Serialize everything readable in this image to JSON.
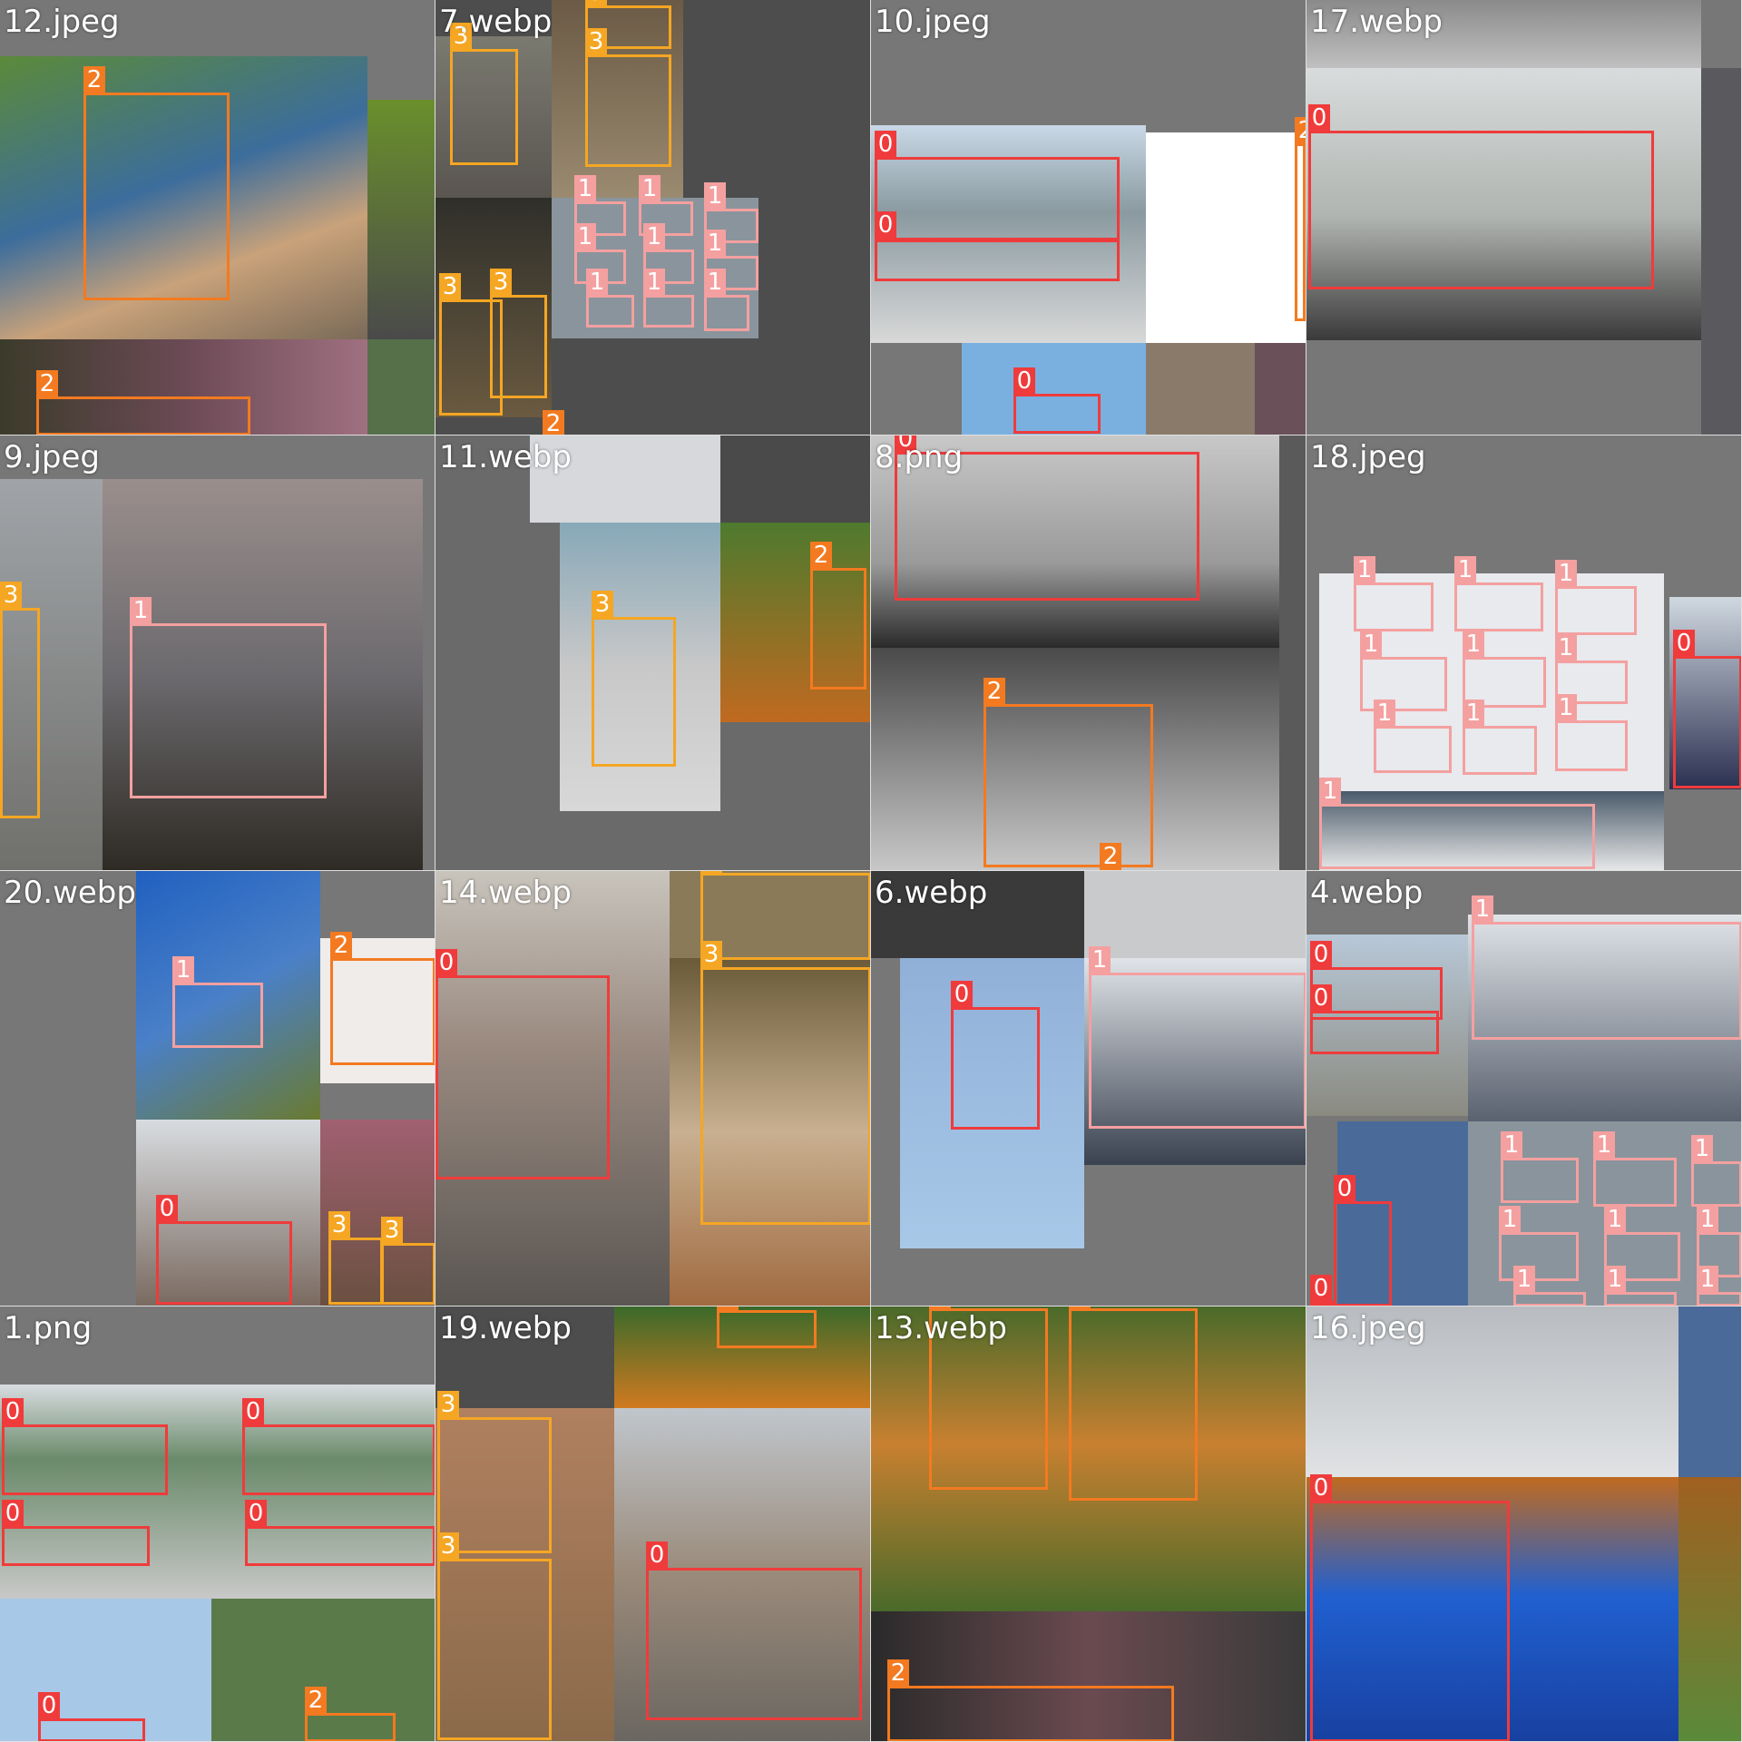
{
  "class_colors": {
    "0": "#ef3b3b",
    "1": "#f4a0a0",
    "2": "#f37a20",
    "3": "#f5a623"
  },
  "tiles": [
    {
      "title": "12.jpeg",
      "labels": [
        "2",
        "2"
      ]
    },
    {
      "title": "7.webp",
      "labels": [
        "3",
        "3",
        "3",
        "1",
        "1",
        "1",
        "1",
        "1",
        "1",
        "1",
        "1",
        "1",
        "3",
        "3",
        "2"
      ]
    },
    {
      "title": "10.jpeg",
      "labels": [
        "0",
        "0",
        "0",
        "2"
      ]
    },
    {
      "title": "17.webp",
      "labels": [
        "0"
      ]
    },
    {
      "title": "9.jpeg",
      "labels": [
        "3",
        "1"
      ]
    },
    {
      "title": "11.webp",
      "labels": [
        "3",
        "2"
      ]
    },
    {
      "title": "8.png",
      "labels": [
        "0",
        "2",
        "2"
      ]
    },
    {
      "title": "18.jpeg",
      "labels": [
        "1",
        "1",
        "1",
        "1",
        "1",
        "1",
        "1",
        "1",
        "1",
        "1",
        "0"
      ]
    },
    {
      "title": "20.webp",
      "labels": [
        "1",
        "2",
        "0",
        "3",
        "3"
      ]
    },
    {
      "title": "14.webp",
      "labels": [
        "0",
        "3",
        "3"
      ]
    },
    {
      "title": "6.webp",
      "labels": [
        "0",
        "1"
      ]
    },
    {
      "title": "4.webp",
      "labels": [
        "0",
        "0",
        "1",
        "0",
        "1",
        "1",
        "1",
        "1",
        "1",
        "1",
        "1",
        "1",
        "1",
        "0"
      ]
    },
    {
      "title": "1.png",
      "labels": [
        "0",
        "0",
        "0",
        "0",
        "0",
        "2"
      ]
    },
    {
      "title": "19.webp",
      "labels": [
        "3",
        "3",
        "0",
        "2"
      ]
    },
    {
      "title": "13.webp",
      "labels": [
        "2",
        "2",
        "2"
      ]
    },
    {
      "title": "16.jpeg",
      "labels": [
        "0"
      ]
    }
  ]
}
